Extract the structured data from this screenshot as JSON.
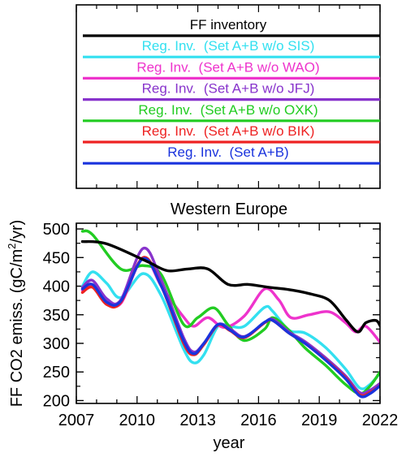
{
  "chart_data": {
    "type": "line",
    "title": "Western Europe",
    "xlabel": "year",
    "ylabel_parts": [
      "FF CO2 emiss. (gC/m",
      "2",
      "/yr)"
    ],
    "xlim": [
      2007,
      2022
    ],
    "ylim": [
      195,
      510
    ],
    "xticks": [
      2007,
      2010,
      2013,
      2016,
      2019,
      2022
    ],
    "yticks": [
      200,
      250,
      300,
      350,
      400,
      450,
      500
    ],
    "legend_position": "separate-panel-above",
    "series": [
      {
        "name": "FF inventory",
        "color": "#000000",
        "x": [
          2007.3,
          2008.5,
          2010.5,
          2011.5,
          2012.5,
          2013.5,
          2014.5,
          2015.5,
          2016.5,
          2017.5,
          2018.5,
          2019.5,
          2020.3,
          2020.9,
          2021.3,
          2021.8,
          2022
        ],
        "y": [
          478,
          474,
          443,
          427,
          430,
          430,
          403,
          403,
          398,
          394,
          387,
          375,
          342,
          320,
          336,
          340,
          331
        ]
      },
      {
        "name": "Reg. Inv.  (Set A+B w/o SIS)",
        "color": "#33e0f0",
        "x": [
          2007.3,
          2007.8,
          2008.5,
          2009.2,
          2010.3,
          2011.2,
          2012.3,
          2012.8,
          2013.3,
          2014.0,
          2014.6,
          2015.3,
          2016.3,
          2016.7,
          2017.5,
          2018.3,
          2019.3,
          2020.3,
          2021.0,
          2021.5,
          2022
        ],
        "y": [
          400,
          425,
          405,
          380,
          422,
          383,
          290,
          266,
          280,
          330,
          330,
          330,
          363,
          356,
          323,
          318,
          293,
          255,
          222,
          228,
          248
        ]
      },
      {
        "name": "Reg. Inv.  (Set A+B w/o WAO)",
        "color": "#ee33cc",
        "x": [
          2007.3,
          2007.8,
          2008.5,
          2009.2,
          2010.3,
          2011.2,
          2012.3,
          2012.8,
          2013.5,
          2014.3,
          2015.3,
          2016.3,
          2017.0,
          2017.6,
          2018.5,
          2019.5,
          2020.3,
          2020.8,
          2021.3,
          2022
        ],
        "y": [
          393,
          402,
          375,
          370,
          450,
          400,
          346,
          330,
          345,
          328,
          348,
          395,
          376,
          345,
          350,
          355,
          336,
          320,
          330,
          302
        ]
      },
      {
        "name": "Reg. Inv.  (Set A+B w/o JFJ)",
        "color": "#8833cc",
        "x": [
          2007.3,
          2007.8,
          2008.5,
          2009.2,
          2010.3,
          2011.2,
          2012.3,
          2012.8,
          2013.3,
          2014.0,
          2014.6,
          2015.3,
          2016.3,
          2016.7,
          2017.5,
          2018.3,
          2019.3,
          2020.3,
          2021.0,
          2021.5,
          2022
        ],
        "y": [
          398,
          410,
          378,
          376,
          466,
          410,
          310,
          285,
          300,
          333,
          325,
          312,
          336,
          342,
          320,
          303,
          275,
          243,
          214,
          218,
          230
        ]
      },
      {
        "name": "Reg. Inv.  (Set A+B w/o OXK)",
        "color": "#22cc22",
        "x": [
          2007.3,
          2007.8,
          2009.2,
          2010.3,
          2011.2,
          2012.3,
          2013.0,
          2013.8,
          2014.5,
          2015.3,
          2016.3,
          2016.7,
          2017.5,
          2018.3,
          2019.3,
          2020.3,
          2021.0,
          2021.5,
          2022
        ],
        "y": [
          496,
          490,
          430,
          436,
          420,
          333,
          345,
          362,
          332,
          305,
          325,
          345,
          323,
          292,
          262,
          228,
          212,
          225,
          250
        ]
      },
      {
        "name": "Reg. Inv.  (Set A+B w/o BIK)",
        "color": "#ee2222",
        "x": [
          2007.3,
          2007.8,
          2008.5,
          2009.2,
          2010.3,
          2011.2,
          2012.3,
          2012.8,
          2013.3,
          2014.0,
          2014.6,
          2015.3,
          2016.3,
          2016.7,
          2017.5,
          2018.3,
          2019.3,
          2020.3,
          2021.0,
          2021.5,
          2022
        ],
        "y": [
          389,
          398,
          368,
          372,
          450,
          400,
          300,
          280,
          298,
          332,
          322,
          310,
          336,
          340,
          318,
          300,
          272,
          240,
          210,
          214,
          226
        ]
      },
      {
        "name": "Reg. Inv.  (Set A+B)",
        "color": "#1a33dd",
        "x": [
          2007.3,
          2007.8,
          2008.5,
          2009.2,
          2010.3,
          2011.2,
          2012.3,
          2012.8,
          2013.3,
          2014.0,
          2014.6,
          2015.3,
          2016.3,
          2016.7,
          2017.5,
          2018.3,
          2019.3,
          2020.3,
          2021.0,
          2021.5,
          2022
        ],
        "y": [
          395,
          403,
          372,
          374,
          448,
          400,
          305,
          282,
          300,
          333,
          323,
          311,
          337,
          340,
          318,
          300,
          271,
          238,
          208,
          212,
          226
        ]
      }
    ]
  }
}
